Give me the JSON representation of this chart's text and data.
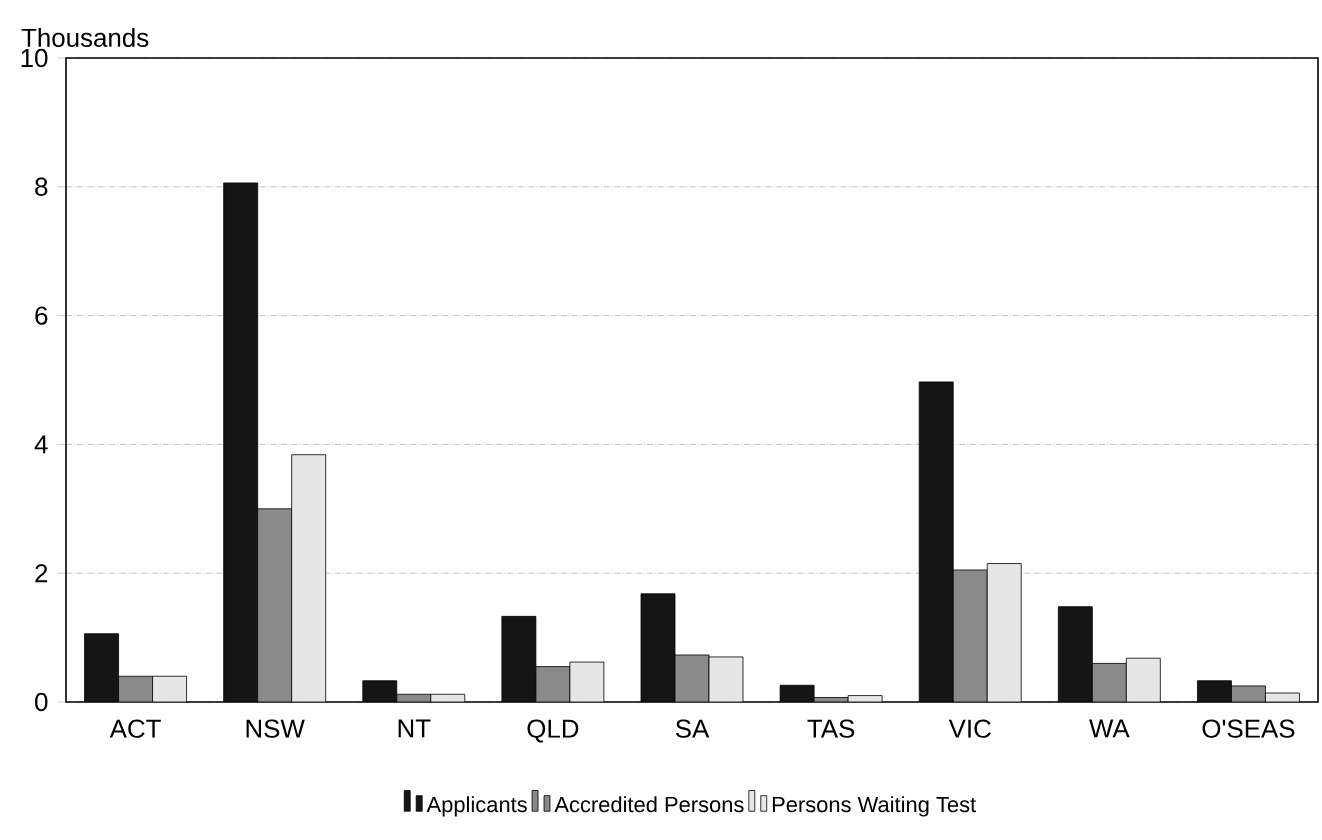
{
  "chart_data": {
    "type": "bar",
    "ylabel": "Thousands",
    "categories": [
      "ACT",
      "NSW",
      "NT",
      "QLD",
      "SA",
      "TAS",
      "VIC",
      "WA",
      "O'SEAS"
    ],
    "series": [
      {
        "name": "Applicants",
        "color": "#151515",
        "values": [
          1.06,
          8.06,
          0.33,
          1.33,
          1.68,
          0.26,
          4.97,
          1.48,
          0.33
        ]
      },
      {
        "name": "Accredited Persons",
        "color": "#8a8a8a",
        "values": [
          0.4,
          3.0,
          0.12,
          0.55,
          0.73,
          0.07,
          2.05,
          0.6,
          0.25
        ]
      },
      {
        "name": "Persons Waiting Test",
        "color": "#e6e6e6",
        "values": [
          0.4,
          3.84,
          0.12,
          0.62,
          0.7,
          0.1,
          2.15,
          0.68,
          0.14
        ]
      }
    ],
    "ylim": [
      0,
      10
    ],
    "yticks": [
      0,
      2,
      4,
      6,
      8,
      10
    ],
    "grid": "y",
    "legend": "bottom"
  }
}
